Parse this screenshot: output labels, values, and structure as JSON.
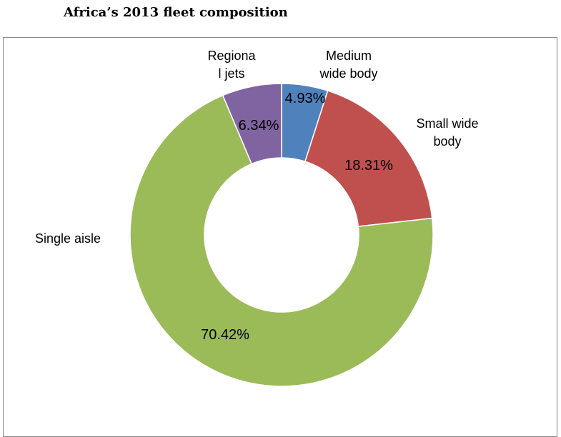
{
  "title": "Africa’s 2013 fleet composition",
  "chart_data": {
    "type": "pie",
    "variant": "doughnut",
    "title": "Africa’s 2013 fleet composition",
    "categories": [
      "Medium wide body",
      "Small wide body",
      "Single aisle",
      "Regional jets"
    ],
    "category_lines": [
      [
        "Medium",
        "wide body"
      ],
      [
        "Small wide",
        "body"
      ],
      [
        "Single aisle"
      ],
      [
        "Regiona",
        "l jets"
      ]
    ],
    "values": [
      4.93,
      18.31,
      70.42,
      6.34
    ],
    "value_labels": [
      "4.93%",
      "18.31%",
      "70.42%",
      "6.34%"
    ],
    "colors": [
      "#4F81BD",
      "#C0504D",
      "#9BBB59",
      "#8064A2"
    ],
    "unit": "%",
    "legend": "none"
  }
}
